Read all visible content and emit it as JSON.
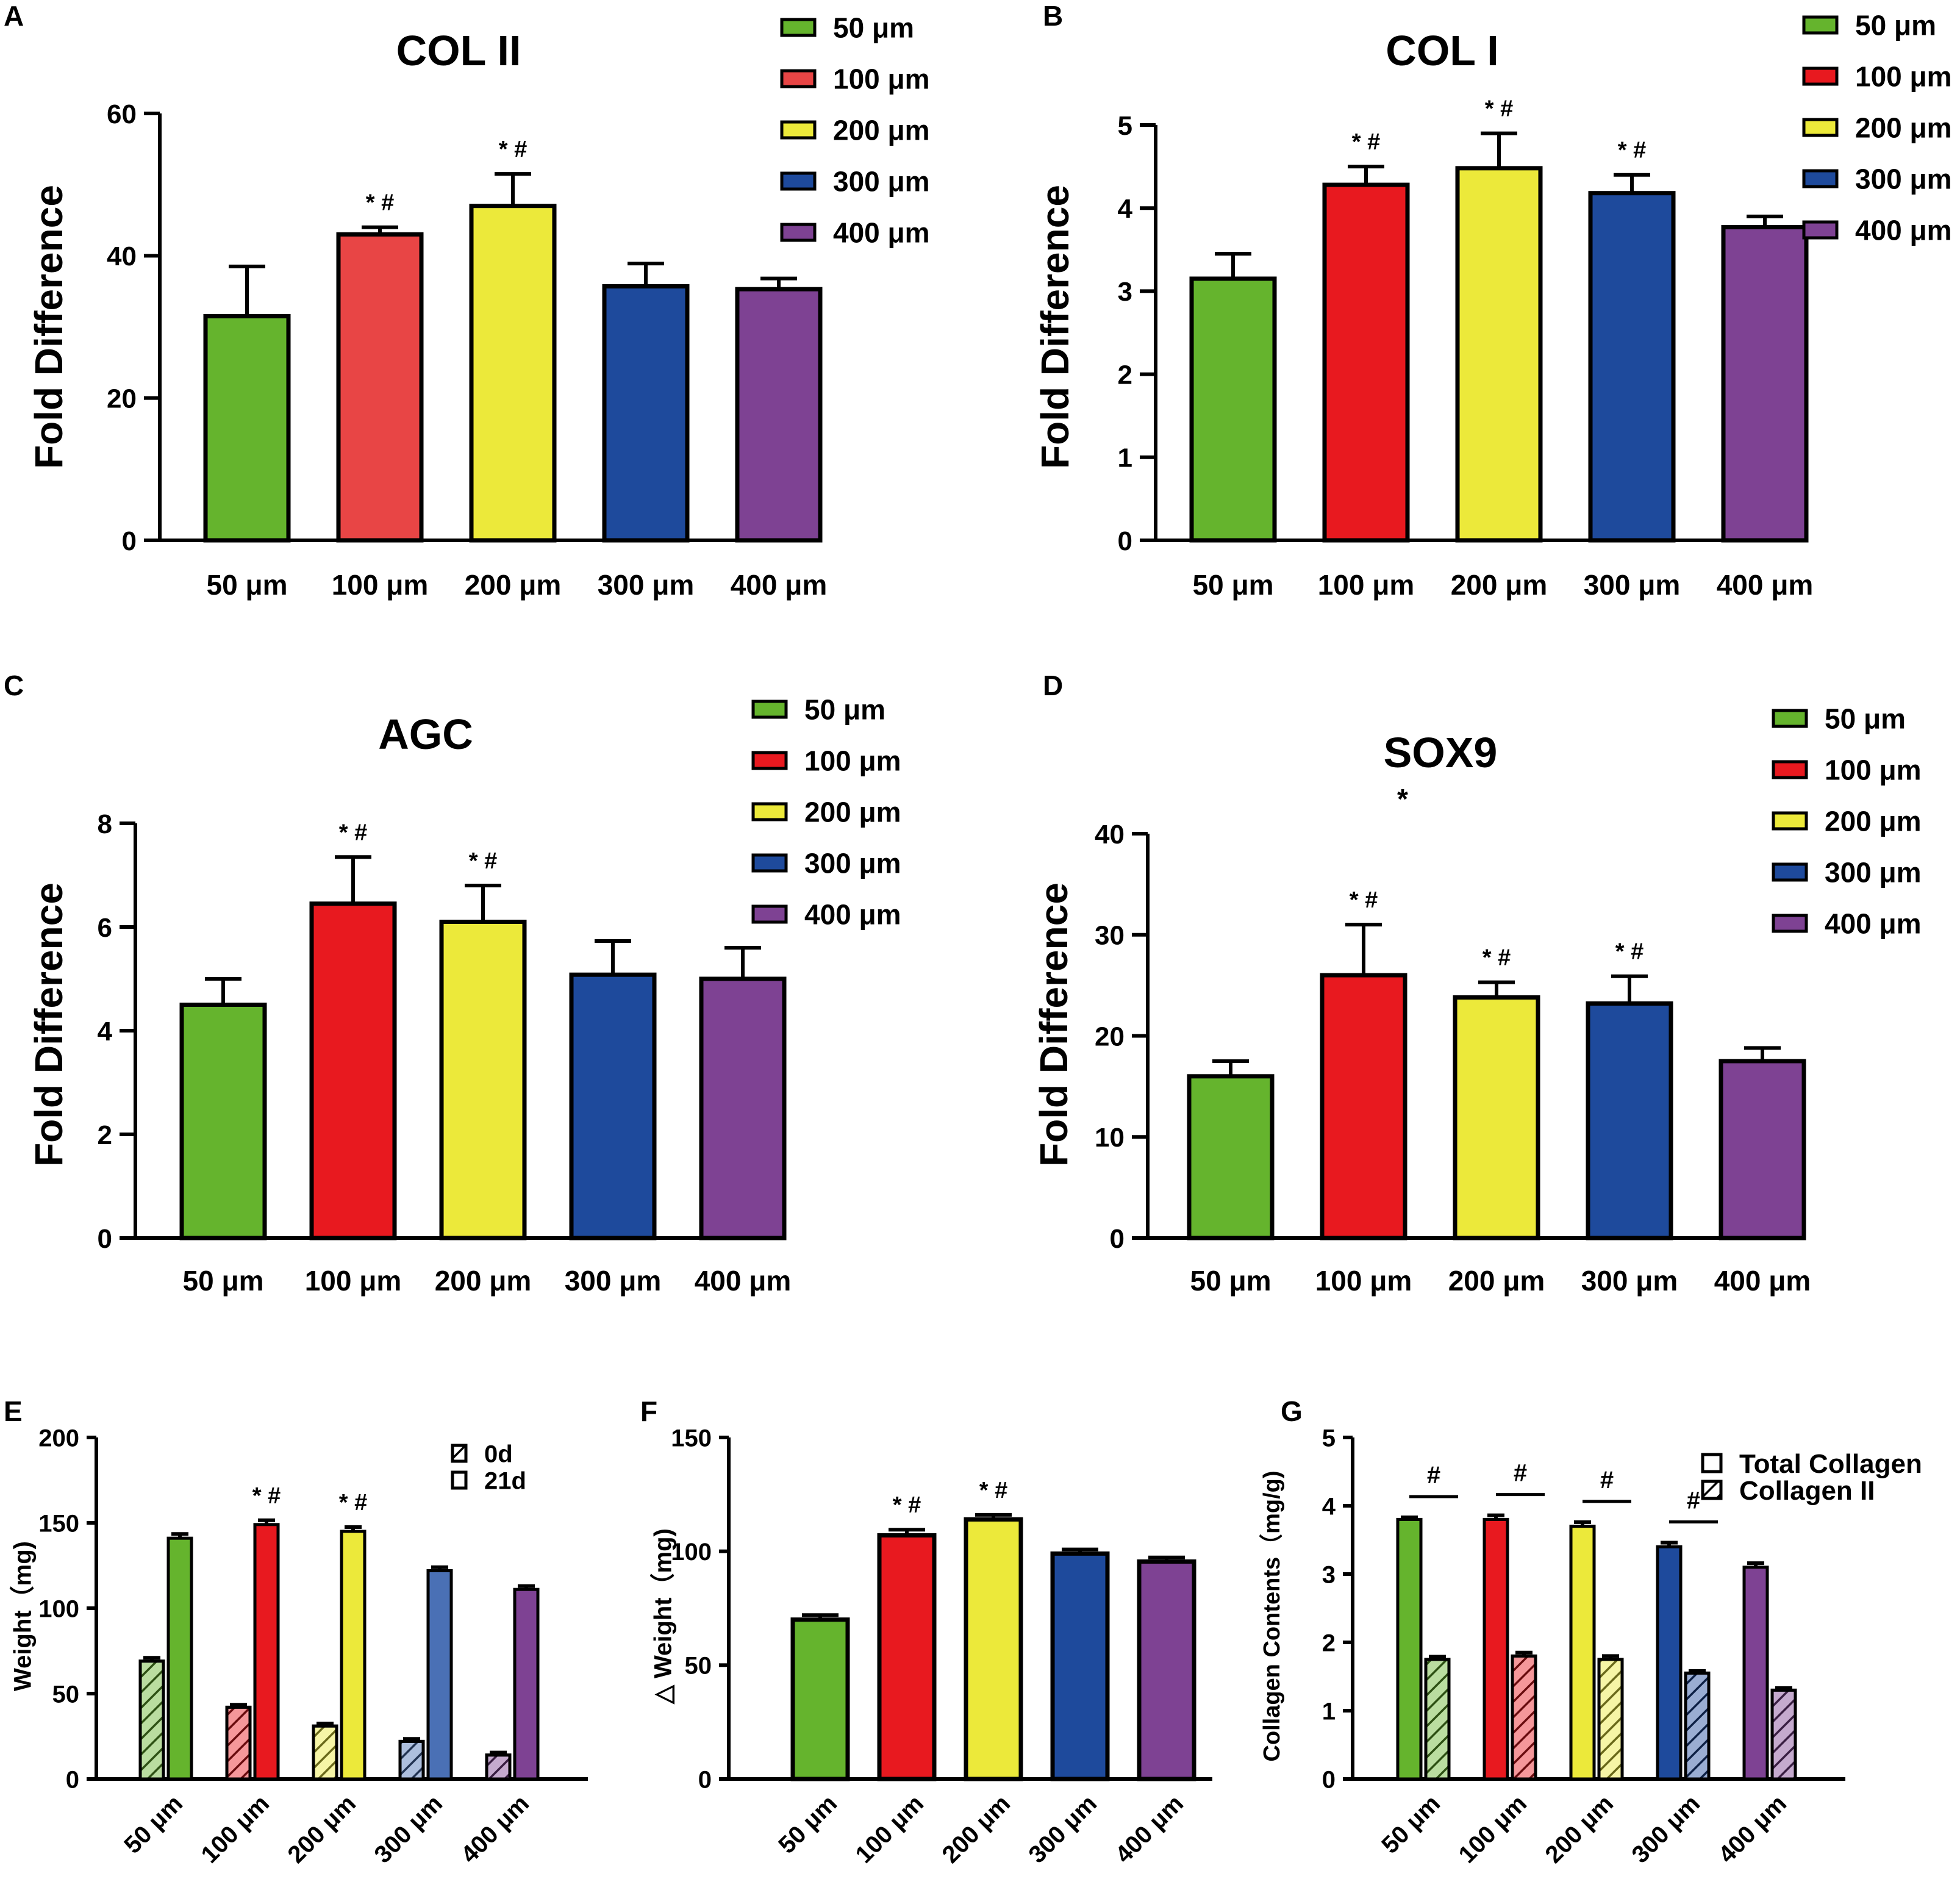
{
  "figure": {
    "panel_labels": [
      "A",
      "B",
      "C",
      "D",
      "E",
      "F",
      "G"
    ]
  },
  "colors": {
    "green": "#65b42d",
    "red": "#e8191f",
    "red_light": "#e84545",
    "yellow": "#ece93a",
    "blue": "#1e4a9c",
    "blue_light": "#4a70b5",
    "purple": "#7e4293",
    "axis": "#000000"
  },
  "chart_data": [
    {
      "panel": "A",
      "type": "bar",
      "title": "COL II",
      "xlabel": "",
      "ylabel": "Fold Difference",
      "categories": [
        "50 μm",
        "100 μm",
        "200 μm",
        "300 μm",
        "400 μm"
      ],
      "values": [
        31.5,
        43,
        47,
        35.7,
        35.3
      ],
      "errors": [
        7,
        1,
        4.5,
        3.2,
        1.5
      ],
      "ylim": [
        0,
        60
      ],
      "yticks": [
        "0",
        "20",
        "40",
        "60"
      ],
      "annotations": [
        "",
        "* #",
        "* #",
        "",
        ""
      ],
      "legend": [
        "50 μm",
        "100 μm",
        "200 μm",
        "300 μm",
        "400 μm"
      ]
    },
    {
      "panel": "B",
      "type": "bar",
      "title": "COL I",
      "xlabel": "",
      "ylabel": "Fold Difference",
      "categories": [
        "50 μm",
        "100 μm",
        "200 μm",
        "300 μm",
        "400 μm"
      ],
      "values": [
        3.15,
        4.28,
        4.48,
        4.18,
        3.77
      ],
      "errors": [
        0.3,
        0.22,
        0.42,
        0.22,
        0.13
      ],
      "ylim": [
        0,
        5
      ],
      "yticks": [
        "0",
        "1",
        "2",
        "3",
        "4",
        "5"
      ],
      "annotations": [
        "",
        "* #",
        "* #",
        "* #",
        ""
      ],
      "legend": [
        "50 μm",
        "100 μm",
        "200 μm",
        "300 μm",
        "400 μm"
      ]
    },
    {
      "panel": "C",
      "type": "bar",
      "title": "AGC",
      "xlabel": "",
      "ylabel": "Fold Difference",
      "categories": [
        "50 μm",
        "100 μm",
        "200 μm",
        "300 μm",
        "400 μm"
      ],
      "values": [
        4.5,
        6.45,
        6.1,
        5.08,
        5.0
      ],
      "errors": [
        0.5,
        0.9,
        0.7,
        0.65,
        0.6
      ],
      "ylim": [
        0,
        8
      ],
      "yticks": [
        "0",
        "2",
        "4",
        "6",
        "8"
      ],
      "annotations": [
        "",
        "* #",
        "* #",
        "",
        ""
      ],
      "legend": [
        "50 μm",
        "100 μm",
        "200 μm",
        "300 μm",
        "400 μm"
      ]
    },
    {
      "panel": "D",
      "type": "bar",
      "title": "SOX9",
      "title_mark": "*",
      "xlabel": "",
      "ylabel": "Fold Difference",
      "categories": [
        "50 μm",
        "100 μm",
        "200 μm",
        "300 μm",
        "400 μm"
      ],
      "values": [
        16,
        26,
        23.8,
        23.2,
        17.5
      ],
      "errors": [
        1.5,
        5,
        1.5,
        2.7,
        1.3
      ],
      "ylim": [
        0,
        40
      ],
      "yticks": [
        "0",
        "10",
        "20",
        "30",
        "40"
      ],
      "annotations": [
        "",
        "* #",
        "* #",
        "* #",
        ""
      ],
      "legend": [
        "50 μm",
        "100 μm",
        "200 μm",
        "300 μm",
        "400 μm"
      ]
    },
    {
      "panel": "E",
      "type": "bar",
      "title": "",
      "xlabel": "",
      "ylabel": "Weight（mg)",
      "categories": [
        "50 μm",
        "100 μm",
        "200 μm",
        "300 μm",
        "400 μm"
      ],
      "series": [
        {
          "name": "0d",
          "values": [
            69,
            42,
            31,
            22,
            14
          ],
          "errors": [
            2,
            1.5,
            1.5,
            1.5,
            1.5
          ]
        },
        {
          "name": "21d",
          "values": [
            141,
            149,
            145,
            122,
            111
          ],
          "errors": [
            2.5,
            2.5,
            2.5,
            2,
            2
          ]
        }
      ],
      "ylim": [
        0,
        200
      ],
      "yticks": [
        "0",
        "50",
        "100",
        "150",
        "200"
      ],
      "annotations": [
        "",
        "* #",
        "* #",
        "",
        ""
      ],
      "legend": [
        "0d",
        "21d"
      ]
    },
    {
      "panel": "F",
      "type": "bar",
      "title": "",
      "xlabel": "",
      "ylabel": "△ Weight（mg)",
      "categories": [
        "50 μm",
        "100 μm",
        "200 μm",
        "300 μm",
        "400 μm"
      ],
      "values": [
        70,
        107,
        114,
        99,
        95.5
      ],
      "errors": [
        2,
        2.5,
        2,
        1.8,
        1.8
      ],
      "ylim": [
        0,
        150
      ],
      "yticks": [
        "0",
        "50",
        "100",
        "150"
      ],
      "annotations": [
        "",
        "* #",
        "* #",
        "",
        ""
      ]
    },
    {
      "panel": "G",
      "type": "bar",
      "title": "",
      "xlabel": "",
      "ylabel": "Collagen Contents（mg/g)",
      "categories": [
        "50 μm",
        "100 μm",
        "200 μm",
        "300 μm",
        "400 μm"
      ],
      "series": [
        {
          "name": "Total Collagen",
          "values": [
            3.8,
            3.8,
            3.7,
            3.4,
            3.1
          ],
          "errors": [
            0.03,
            0.06,
            0.06,
            0.06,
            0.06
          ]
        },
        {
          "name": "Collagen II",
          "values": [
            1.75,
            1.8,
            1.75,
            1.55,
            1.3
          ],
          "errors": [
            0.04,
            0.05,
            0.05,
            0.03,
            0.03
          ]
        }
      ],
      "ylim": [
        0,
        5
      ],
      "yticks": [
        "0",
        "1",
        "2",
        "3",
        "4",
        "5"
      ],
      "annotations": [
        "#",
        "#",
        "#",
        "#",
        ""
      ],
      "legend": [
        "Total Collagen",
        "Collagen II"
      ]
    }
  ]
}
